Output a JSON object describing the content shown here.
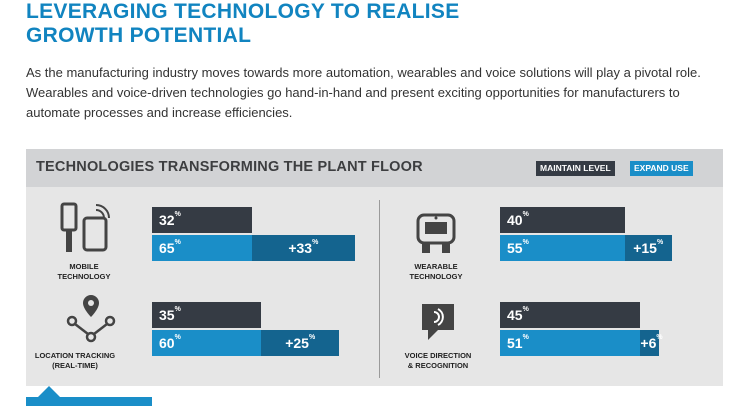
{
  "page": {
    "title_line1": "LEVERAGING TECHNOLOGY TO REALISE",
    "title_line2": "GROWTH POTENTIAL",
    "intro": "As the manufacturing industry moves towards more automation, wearables and voice solutions will play a pivotal role. Wearables and voice-driven technologies go hand-in-hand and present exciting opportunities for manufacturers to automate processes and increase efficiencies."
  },
  "chart_data": {
    "type": "bar",
    "title": "TECHNOLOGIES TRANSFORMING THE PLANT FLOOR",
    "legend": [
      "MAINTAIN LEVEL",
      "EXPAND USE"
    ],
    "units": "%",
    "categories": [
      {
        "line1": "MOBILE",
        "line2": "TECHNOLOGY",
        "icon": "mobile-devices-icon",
        "maintain": 32,
        "expand": 65,
        "diff_label": "+33"
      },
      {
        "line1": "WEARABLE",
        "line2": "TECHNOLOGY",
        "icon": "wearable-device-icon",
        "maintain": 40,
        "expand": 55,
        "diff_label": "+15"
      },
      {
        "line1": "LOCATION TRACKING",
        "line2": "(REAL-TIME)",
        "icon": "location-tracking-icon",
        "maintain": 35,
        "expand": 60,
        "diff_label": "+25"
      },
      {
        "line1": "VOICE DIRECTION",
        "line2": "& RECOGNITION",
        "icon": "voice-recognition-icon",
        "maintain": 45,
        "expand": 51,
        "diff_label": "+6"
      }
    ],
    "colors": {
      "maintain": "#353b44",
      "expand": "#1a8ec8",
      "difference": "#14648f"
    }
  }
}
